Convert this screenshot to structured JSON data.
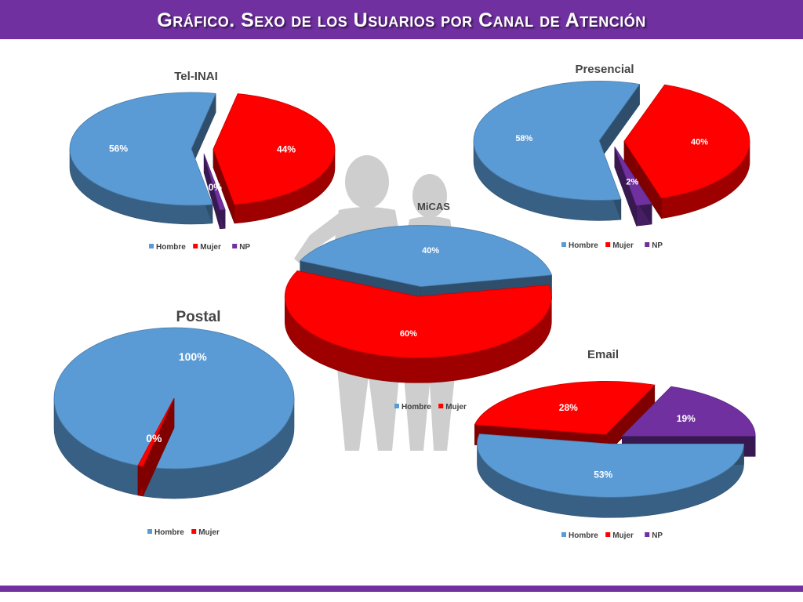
{
  "page": {
    "title": "Gráfico. Sexo de los Usuarios por Canal de Atención"
  },
  "colors": {
    "header": "#7030a0",
    "hombre": "#5b9bd5",
    "mujer": "#ff0000",
    "np": "#7030a0"
  },
  "chart_data": [
    {
      "type": "pie",
      "title": "Tel-INAI",
      "categories": [
        "Hombre",
        "Mujer",
        "NP"
      ],
      "values": [
        56,
        44,
        0
      ],
      "labels": [
        "56%",
        "44%",
        "0%"
      ],
      "legend": "bottom"
    },
    {
      "type": "pie",
      "title": "Presencial",
      "categories": [
        "Hombre",
        "Mujer",
        "NP"
      ],
      "values": [
        58,
        40,
        2
      ],
      "labels": [
        "58%",
        "40%",
        "2%"
      ],
      "legend": "bottom"
    },
    {
      "type": "pie",
      "title": "MiCAS",
      "categories": [
        "Hombre",
        "Mujer"
      ],
      "values": [
        40,
        60
      ],
      "labels": [
        "40%",
        "60%"
      ],
      "legend": "bottom"
    },
    {
      "type": "pie",
      "title": "Postal",
      "categories": [
        "Hombre",
        "Mujer"
      ],
      "values": [
        100,
        0
      ],
      "labels": [
        "100%",
        "0%"
      ],
      "legend": "bottom"
    },
    {
      "type": "pie",
      "title": "Email",
      "categories": [
        "Hombre",
        "Mujer",
        "NP"
      ],
      "values": [
        53,
        28,
        19
      ],
      "labels": [
        "53%",
        "28%",
        "19%"
      ],
      "legend": "bottom"
    }
  ]
}
